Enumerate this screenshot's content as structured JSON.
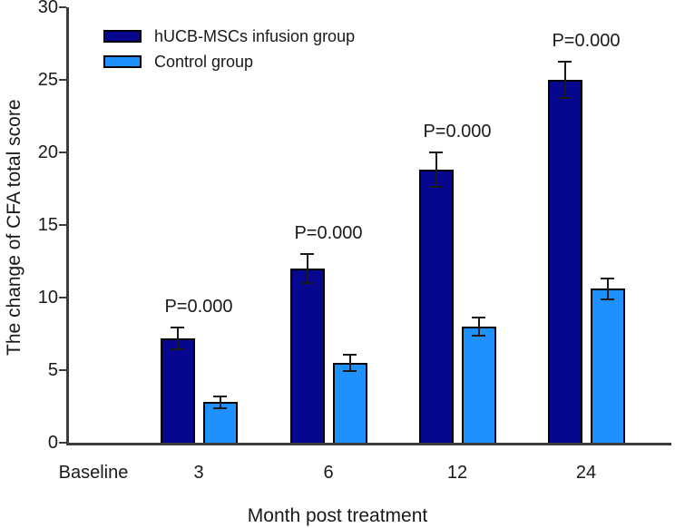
{
  "chart_data": {
    "type": "bar",
    "title": "",
    "xlabel": "Month post treatment",
    "ylabel": "The change of CFA total score",
    "categories": [
      "Baseline",
      "3",
      "6",
      "12",
      "24"
    ],
    "series": [
      {
        "name": "hUCB-MSCs infusion group",
        "key": "infusion",
        "color": "#06068e",
        "values": [
          null,
          7.2,
          12.0,
          18.8,
          25.0
        ],
        "errors": [
          null,
          0.75,
          1.0,
          1.2,
          1.25
        ]
      },
      {
        "name": "Control group",
        "key": "control",
        "color": "#1e91ff",
        "values": [
          null,
          2.8,
          5.5,
          8.0,
          10.6
        ],
        "errors": [
          null,
          0.4,
          0.55,
          0.6,
          0.7
        ]
      }
    ],
    "annotations": [
      {
        "text": "P=0.000",
        "category": "3"
      },
      {
        "text": "P=0.000",
        "category": "6"
      },
      {
        "text": "P=0.000",
        "category": "12"
      },
      {
        "text": "P=0.000",
        "category": "24"
      }
    ],
    "ylim": [
      0,
      30
    ],
    "yticks": [
      0,
      5,
      10,
      15,
      20,
      25,
      30
    ],
    "grid": false,
    "legend_position": "top-left-inside",
    "axis_color": "#3c3c3c",
    "text_color": "#1a1a1a",
    "bar_border_color": "#000000",
    "error_bar_color": "#1a1a1a"
  }
}
